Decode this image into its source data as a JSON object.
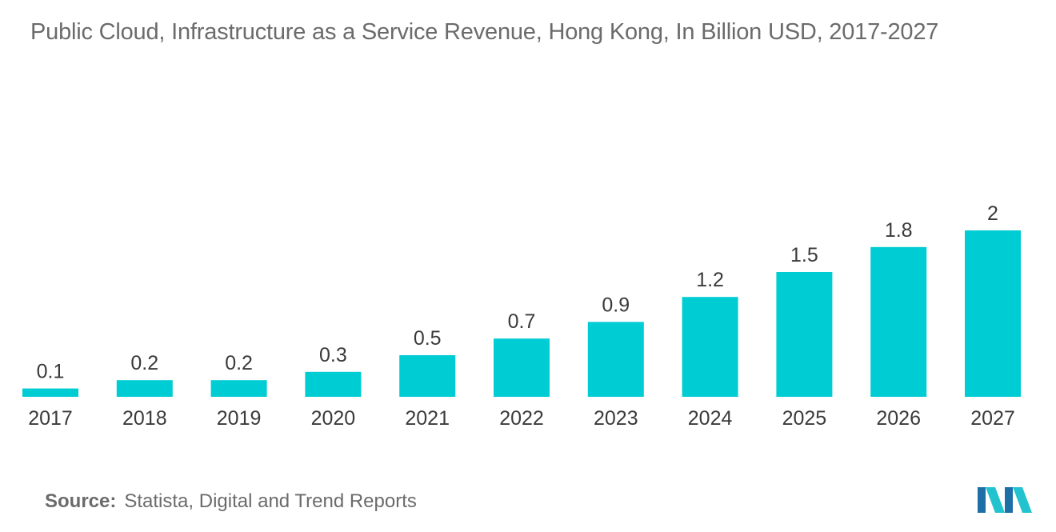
{
  "colors": {
    "bar": "#00ccd4",
    "logo_dark": "#1e6fa8",
    "logo_light": "#22c3cf"
  },
  "logo_icon": "mordor-intelligence-logo-icon",
  "chart_data": {
    "type": "bar",
    "title": "Public Cloud, Infrastructure as a Service Revenue, Hong Kong, In Billion USD, 2017-2027",
    "xlabel": "",
    "ylabel": "",
    "ylim": [
      0,
      2
    ],
    "grid": false,
    "categories": [
      "2017",
      "2018",
      "2019",
      "2020",
      "2021",
      "2022",
      "2023",
      "2024",
      "2025",
      "2026",
      "2027"
    ],
    "values": [
      0.1,
      0.2,
      0.2,
      0.3,
      0.5,
      0.7,
      0.9,
      1.2,
      1.5,
      1.8,
      2
    ],
    "data_labels": [
      "0.1",
      "0.2",
      "0.2",
      "0.3",
      "0.5",
      "0.7",
      "0.9",
      "1.2",
      "1.5",
      "1.8",
      "2"
    ]
  },
  "footer": {
    "source_label": "Source:",
    "source_text": "Statista, Digital and Trend Reports"
  }
}
